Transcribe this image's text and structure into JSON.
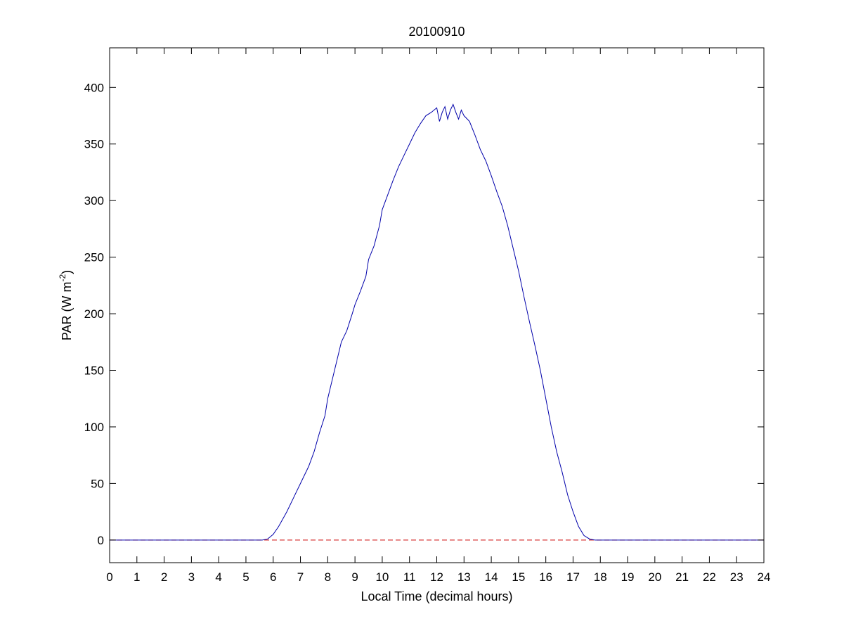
{
  "chart_data": {
    "type": "line",
    "title": "20100910",
    "xlabel": "Local Time (decimal hours)",
    "ylabel": {
      "text": "PAR (W m",
      "superscript": "-2",
      "suffix": ")"
    },
    "xlim": [
      0,
      24
    ],
    "ylim": [
      -20,
      435
    ],
    "x_ticks": [
      0,
      1,
      2,
      3,
      4,
      5,
      6,
      7,
      8,
      9,
      10,
      11,
      12,
      13,
      14,
      15,
      16,
      17,
      18,
      19,
      20,
      21,
      22,
      23,
      24
    ],
    "y_ticks": [
      0,
      50,
      100,
      150,
      200,
      250,
      300,
      350,
      400
    ],
    "grid": false,
    "series": [
      {
        "color": "#0000aa",
        "style": "solid",
        "x": [
          0,
          5.6,
          5.8,
          6.0,
          6.2,
          6.5,
          6.8,
          7.0,
          7.3,
          7.5,
          7.7,
          7.9,
          8.0,
          8.2,
          8.4,
          8.5,
          8.7,
          8.9,
          9.0,
          9.2,
          9.4,
          9.5,
          9.7,
          9.9,
          10.0,
          10.2,
          10.4,
          10.6,
          10.8,
          11.0,
          11.2,
          11.4,
          11.6,
          11.8,
          12.0,
          12.1,
          12.2,
          12.3,
          12.4,
          12.5,
          12.6,
          12.7,
          12.8,
          12.9,
          13.0,
          13.2,
          13.4,
          13.6,
          13.8,
          14.0,
          14.2,
          14.4,
          14.6,
          14.8,
          15.0,
          15.2,
          15.4,
          15.6,
          15.8,
          16.0,
          16.2,
          16.4,
          16.6,
          16.8,
          17.0,
          17.2,
          17.4,
          17.6,
          17.8,
          18.0,
          18.2,
          18.4,
          18.6,
          18.8,
          19.0,
          24
        ],
        "y": [
          0,
          0,
          1,
          5,
          12,
          25,
          40,
          50,
          65,
          78,
          95,
          110,
          125,
          145,
          165,
          175,
          185,
          200,
          208,
          220,
          233,
          248,
          260,
          278,
          292,
          305,
          318,
          330,
          340,
          350,
          360,
          368,
          375,
          378,
          382,
          370,
          378,
          383,
          372,
          380,
          385,
          378,
          372,
          380,
          375,
          370,
          358,
          345,
          335,
          322,
          308,
          295,
          278,
          258,
          238,
          215,
          193,
          172,
          150,
          125,
          100,
          78,
          60,
          40,
          25,
          12,
          4,
          1,
          0,
          0,
          0,
          0,
          0,
          0,
          0,
          0
        ]
      },
      {
        "color": "#cc0000",
        "style": "dashed",
        "x": [
          0,
          24
        ],
        "y": [
          0,
          0
        ]
      }
    ]
  }
}
